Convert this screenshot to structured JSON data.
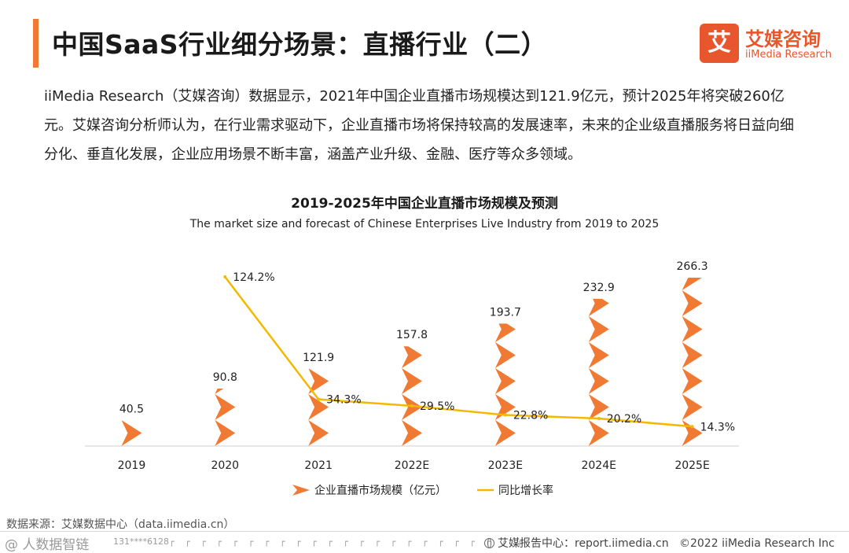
{
  "header": {
    "title": "中国SaaS行业细分场景：直播行业（二）",
    "logo_mark": "艾",
    "logo_cn": "艾媒咨询",
    "logo_en": "iiMedia Research"
  },
  "intro": "iiMedia Research（艾媒咨询）数据显示，2021年中国企业直播市场规模达到121.9亿元，预计2025年将突破260亿元。艾媒咨询分析师认为，在行业需求驱动下，企业直播市场将保持较高的发展速率，未来的企业级直播服务将日益向细分化、垂直化发展，企业应用场景不断丰富，涵盖产业升级、金融、医疗等众多领域。",
  "colors": {
    "accent": "#f07a33",
    "bar": "#f07a33",
    "line": "#f5b800"
  },
  "chart_data": {
    "type": "bar",
    "title": "2019-2025年中国企业直播市场规模及预测",
    "subtitle": "The  market size and forecast of Chinese Enterprises Live Industry from 2019 to 2025",
    "categories": [
      "2019",
      "2020",
      "2021",
      "2022E",
      "2023E",
      "2024E",
      "2025E"
    ],
    "series": [
      {
        "name": "企业直播市场规模（亿元）",
        "kind": "bar",
        "values": [
          40.5,
          90.8,
          121.9,
          157.8,
          193.7,
          232.9,
          266.3
        ],
        "labels": [
          "40.5",
          "90.8",
          "121.9",
          "157.8",
          "193.7",
          "232.9",
          "266.3"
        ]
      },
      {
        "name": "同比增长率",
        "kind": "line",
        "values": [
          null,
          124.2,
          34.3,
          29.5,
          22.8,
          20.2,
          14.3
        ],
        "labels": [
          "",
          "124.2%",
          "34.3%",
          "29.5%",
          "22.8%",
          "20.2%",
          "14.3%"
        ]
      }
    ],
    "ylim_bar": [
      0,
      280
    ],
    "ylim_line": [
      0,
      130
    ],
    "legend": "bottom"
  },
  "footer": {
    "source": "数据来源：艾媒数据中心（data.iimedia.cn）",
    "watermark": "@ 人数据智链",
    "watermark_id": "131****6128",
    "watermark_ticks": "┌ ┌ ┌ ┌ ┌ ┌ ┌ ┌ ┌ ┌ ┌ ┌ ┌ ┌ ┌ ┌ ┌ ┌ ┌ ┌ ┌ ┌ ┌ ┌",
    "report_center": "艾媒报告中心：report.iimedia.cn",
    "copyright": "©2022  iiMedia Research  Inc"
  }
}
